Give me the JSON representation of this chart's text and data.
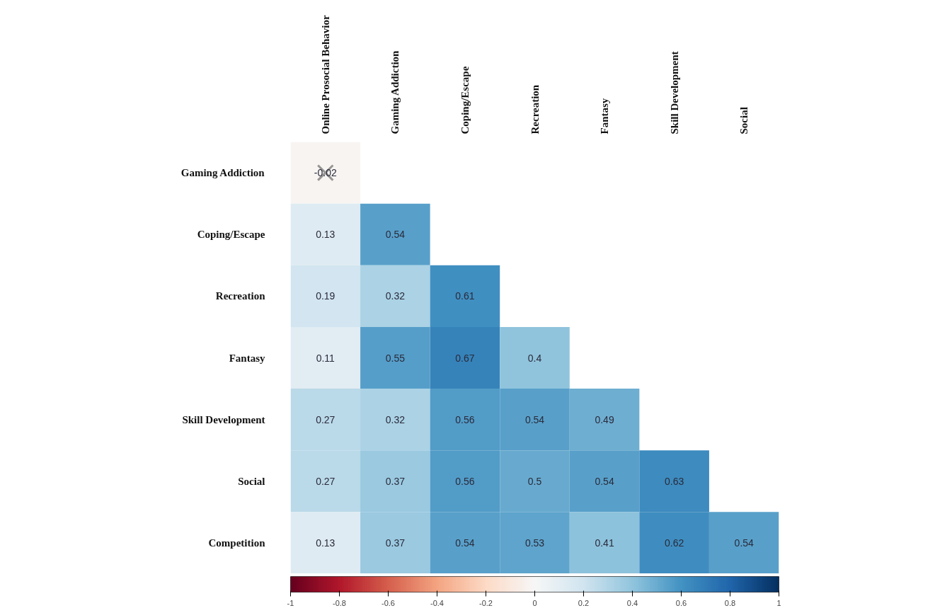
{
  "chart_data": {
    "type": "heatmap",
    "categories": [
      "Online Prosocial Behavior",
      "Gaming Addiction",
      "Coping/Escape",
      "Recreation",
      "Fantasy",
      "Skill Development",
      "Social"
    ],
    "y_categories": [
      "Gaming Addiction",
      "Coping/Escape",
      "Recreation",
      "Fantasy",
      "Skill Development",
      "Social",
      "Competition"
    ],
    "cells": [
      [
        -0.02,
        null,
        null,
        null,
        null,
        null,
        null
      ],
      [
        0.13,
        0.54,
        null,
        null,
        null,
        null,
        null
      ],
      [
        0.19,
        0.32,
        0.61,
        null,
        null,
        null,
        null
      ],
      [
        0.11,
        0.55,
        0.67,
        0.4,
        null,
        null,
        null
      ],
      [
        0.27,
        0.32,
        0.56,
        0.54,
        0.49,
        null,
        null
      ],
      [
        0.27,
        0.37,
        0.56,
        0.5,
        0.54,
        0.63,
        null
      ],
      [
        0.13,
        0.37,
        0.54,
        0.53,
        0.41,
        0.62,
        0.54
      ]
    ],
    "data_labels": true,
    "clim": [
      -1,
      1
    ],
    "cticks": [
      {
        "value": -1,
        "label": "-1"
      },
      {
        "value": -0.8,
        "label": "-0.8"
      },
      {
        "value": -0.6,
        "label": "-0.6"
      },
      {
        "value": -0.4,
        "label": "-0.4"
      },
      {
        "value": -0.2,
        "label": "-0.2"
      },
      {
        "value": 0,
        "label": "0"
      },
      {
        "value": 0.2,
        "label": "0.2"
      },
      {
        "value": 0.4,
        "label": "0.4"
      },
      {
        "value": 0.6,
        "label": "0.6"
      },
      {
        "value": 0.8,
        "label": "0.8"
      },
      {
        "value": 1,
        "label": "1"
      }
    ]
  }
}
